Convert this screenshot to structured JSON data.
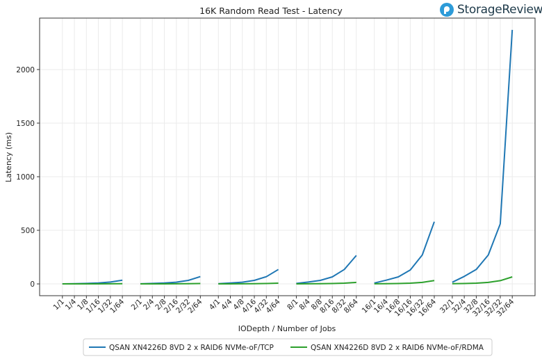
{
  "brand": {
    "logo_text": "StorageReview",
    "color": "#2d9bd8"
  },
  "chart_data": {
    "type": "line",
    "title": "16K Random Read Test - Latency",
    "xlabel": "IODepth / Number of Jobs",
    "ylabel": "Latency (ms)",
    "ylim": [
      -110,
      2480
    ],
    "yticks": [
      0,
      500,
      1000,
      1500,
      2000
    ],
    "grid": true,
    "legend_position": "bottom-center",
    "groups": [
      {
        "categories": [
          "1/1",
          "1/4",
          "1/8",
          "1/16",
          "1/32",
          "1/64"
        ]
      },
      {
        "categories": [
          "2/1",
          "2/4",
          "2/8",
          "2/16",
          "2/32",
          "2/64"
        ]
      },
      {
        "categories": [
          "4/1",
          "4/4",
          "4/8",
          "4/16",
          "4/32",
          "4/64"
        ]
      },
      {
        "categories": [
          "8/1",
          "8/4",
          "8/8",
          "8/16",
          "8/32",
          "8/64"
        ]
      },
      {
        "categories": [
          "16/1",
          "16/4",
          "16/8",
          "16/16",
          "16/32",
          "16/64"
        ]
      },
      {
        "categories": [
          "32/1",
          "32/4",
          "32/8",
          "32/16",
          "32/32",
          "32/64"
        ]
      }
    ],
    "series": [
      {
        "name": "QSAN XN4226D 8VD 2 x RAID6 NVMe-oF/TCP",
        "color": "#1f77b4",
        "values": [
          [
            0.5,
            2,
            4,
            8,
            17,
            35
          ],
          [
            1,
            4,
            8,
            16,
            33,
            68
          ],
          [
            2,
            8,
            16,
            33,
            67,
            135
          ],
          [
            4,
            17,
            33,
            65,
            135,
            265
          ],
          [
            8,
            35,
            65,
            130,
            270,
            580
          ],
          [
            15,
            70,
            135,
            270,
            560,
            2370
          ]
        ]
      },
      {
        "name": "QSAN XN4226D 8VD 2 x RAID6 NVMe-oF/RDMA",
        "color": "#2ca02c",
        "values": [
          [
            0.2,
            0.3,
            0.4,
            0.6,
            1,
            2
          ],
          [
            0.3,
            0.4,
            0.6,
            1,
            2,
            3.5
          ],
          [
            0.4,
            0.6,
            1,
            2,
            3.5,
            7
          ],
          [
            0.6,
            1,
            2,
            3.5,
            7,
            14
          ],
          [
            1,
            2,
            3.5,
            7,
            14,
            31
          ],
          [
            2,
            3.5,
            7,
            14,
            30,
            65
          ]
        ]
      }
    ]
  }
}
